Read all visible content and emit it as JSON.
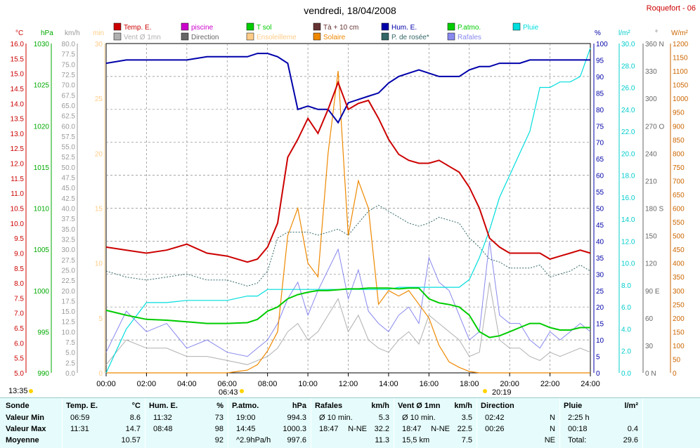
{
  "header": {
    "title": "vendredi, 18/04/2008",
    "station": "Roquefort - 06"
  },
  "legend": [
    {
      "label": "Temp. E.",
      "color": "#cc0000"
    },
    {
      "label": "piscine",
      "color": "#cc00cc"
    },
    {
      "label": "T sol",
      "color": "#00cc00"
    },
    {
      "label": "Tà + 10 cm",
      "color": "#663333"
    },
    {
      "label": "Hum. E.",
      "color": "#0000aa"
    },
    {
      "label": "P.atmo.",
      "color": "#00cc00"
    },
    {
      "label": "Pluie",
      "color": "#00dddd"
    },
    {
      "label": "Vent Ø 1mn",
      "color": "#b0b0b0"
    },
    {
      "label": "Direction",
      "color": "#666666"
    },
    {
      "label": "Ensoleilleme",
      "color": "#ffcc88"
    },
    {
      "label": "Solaire",
      "color": "#ee8800"
    },
    {
      "label": "P. de rosée*",
      "color": "#336666"
    },
    {
      "label": "Rafales",
      "color": "#8888ee"
    }
  ],
  "axes": {
    "temp": {
      "unit": "°C",
      "color": "#cc0000",
      "ticks": [
        "16.0",
        "15.5",
        "15.0",
        "14.5",
        "14.0",
        "13.5",
        "13.0",
        "12.5",
        "12.0",
        "11.5",
        "11.0",
        "10.5",
        "10.0",
        "9.5",
        "9.0",
        "8.5",
        "8.0",
        "7.5",
        "7.0",
        "6.5",
        "6.0",
        "5.5",
        "5.0"
      ]
    },
    "press": {
      "unit": "hPa",
      "color": "#00aa00",
      "ticks": [
        "1030",
        "1025",
        "1020",
        "1015",
        "1010",
        "1005",
        "1000",
        "995",
        "990"
      ]
    },
    "wind": {
      "unit": "km/h",
      "color": "#999999",
      "ticks": [
        "80.0",
        "77.5",
        "75.0",
        "72.5",
        "70.0",
        "67.5",
        "65.0",
        "62.5",
        "60.0",
        "57.5",
        "55.0",
        "52.5",
        "50.0",
        "47.5",
        "45.0",
        "42.5",
        "40.0",
        "37.5",
        "35.0",
        "32.5",
        "30.0",
        "27.5",
        "25.0",
        "22.5",
        "20.0",
        "17.5",
        "15.0",
        "12.5",
        "10.0",
        "7.5",
        "5.0",
        "2.5",
        "0.0"
      ]
    },
    "min": {
      "unit": "min",
      "color": "#ffcc88",
      "ticks": [
        "30",
        "25",
        "20",
        "15",
        "10",
        "5",
        "0"
      ]
    },
    "hum": {
      "unit": "%",
      "color": "#0000aa",
      "ticks": [
        "100",
        "95",
        "90",
        "85",
        "80",
        "75",
        "70",
        "65",
        "60",
        "55",
        "50",
        "45",
        "40",
        "35",
        "30",
        "25",
        "20",
        "15",
        "10",
        "5",
        "0"
      ]
    },
    "rain": {
      "unit": "l/m²",
      "color": "#00cccc",
      "ticks": [
        "30.0",
        "28.0",
        "26.0",
        "24.0",
        "22.0",
        "20.0",
        "18.0",
        "16.0",
        "14.0",
        "12.0",
        "10.0",
        "8.0",
        "6.0",
        "4.0",
        "2.0",
        "0.0"
      ]
    },
    "dir": {
      "unit": "°",
      "color": "#666666",
      "ticks": [
        "360 N",
        "330",
        "300",
        "270 O",
        "240",
        "210",
        "180 S",
        "150",
        "120",
        "90 E",
        "60",
        "30",
        "0 N"
      ]
    },
    "solar": {
      "unit": "W/m²",
      "color": "#cc6600",
      "ticks": [
        "1200",
        "1150",
        "1100",
        "1050",
        "1000",
        "950",
        "900",
        "850",
        "800",
        "750",
        "700",
        "650",
        "600",
        "550",
        "500",
        "450",
        "400",
        "350",
        "300",
        "250",
        "200",
        "150",
        "100",
        "50",
        "0"
      ]
    },
    "time": {
      "ticks": [
        "00:00",
        "02:00",
        "04:00",
        "06:00",
        "08:00",
        "10:00",
        "12:00",
        "14:00",
        "16:00",
        "18:00",
        "20:00",
        "22:00",
        "24:00"
      ]
    }
  },
  "sun": {
    "sunrise": "06:43",
    "sunset": "20:19",
    "daylength": "13:35"
  },
  "chart_data": {
    "type": "line",
    "x_label": "heure",
    "x": [
      0,
      1,
      2,
      3,
      4,
      5,
      6,
      7,
      7.5,
      8,
      8.5,
      9,
      9.5,
      10,
      10.5,
      11,
      11.5,
      12,
      12.5,
      13,
      13.5,
      14,
      14.5,
      15,
      15.5,
      16,
      16.5,
      17,
      17.5,
      18,
      18.5,
      19,
      19.5,
      20,
      20.5,
      21,
      21.5,
      22,
      22.5,
      23,
      23.5,
      24
    ],
    "series": [
      {
        "name": "Temp. E.",
        "axis": "temp",
        "values": [
          9.2,
          9.1,
          9.0,
          9.1,
          9.3,
          9.0,
          8.9,
          8.7,
          8.8,
          9.2,
          10.0,
          12.2,
          12.8,
          13.5,
          13.0,
          13.8,
          14.7,
          13.8,
          14.0,
          14.1,
          13.5,
          12.8,
          12.3,
          12.1,
          12.0,
          12.0,
          12.1,
          11.9,
          11.7,
          11.2,
          10.5,
          9.5,
          9.2,
          9.0,
          9.0,
          9.0,
          9.0,
          8.8,
          8.9,
          9.0,
          9.1,
          9.0
        ]
      },
      {
        "name": "Hum. E.",
        "axis": "hum",
        "values": [
          94,
          95,
          95,
          95,
          95,
          96,
          96,
          96,
          97,
          97,
          96,
          94,
          80,
          81,
          80,
          80,
          76,
          82,
          83,
          84,
          85,
          88,
          90,
          91,
          92,
          91,
          90,
          90,
          90,
          92,
          93,
          93,
          94,
          94,
          94,
          95,
          95,
          95,
          95,
          95,
          95,
          95
        ]
      },
      {
        "name": "P.atmo.",
        "axis": "press",
        "values": [
          997.6,
          997.0,
          996.5,
          996.4,
          996.2,
          996.0,
          996.0,
          996.1,
          996.5,
          997.5,
          998.0,
          999.0,
          999.5,
          999.8,
          1000.0,
          1000.0,
          1000.1,
          1000.2,
          1000.2,
          1000.3,
          1000.3,
          1000.3,
          1000.2,
          1000.3,
          1000.3,
          999.0,
          998.5,
          998.3,
          998.0,
          997.0,
          995.0,
          994.3,
          994.5,
          995.0,
          995.5,
          996.0,
          996.0,
          995.5,
          995.2,
          995.2,
          995.5,
          995.5
        ]
      },
      {
        "name": "Pluie",
        "axis": "rain",
        "values": [
          0,
          4.0,
          6.4,
          6.4,
          6.6,
          6.6,
          6.6,
          7.0,
          7.0,
          7.6,
          7.6,
          7.6,
          7.6,
          7.6,
          7.6,
          7.6,
          7.6,
          7.6,
          7.6,
          7.6,
          7.6,
          7.6,
          7.8,
          7.8,
          7.8,
          7.8,
          7.8,
          7.8,
          7.8,
          8.5,
          10.5,
          13.0,
          16.0,
          18.0,
          20.0,
          22.0,
          26.0,
          26.0,
          26.5,
          26.5,
          27.0,
          29.6
        ]
      },
      {
        "name": "Solaire",
        "axis": "solar",
        "values": [
          0,
          0,
          0,
          0,
          0,
          0,
          0,
          10,
          30,
          80,
          150,
          500,
          600,
          400,
          350,
          800,
          1100,
          500,
          700,
          600,
          250,
          300,
          280,
          300,
          250,
          200,
          100,
          40,
          20,
          5,
          0,
          0,
          0,
          0,
          0,
          0,
          0,
          0,
          0,
          0,
          0,
          0
        ]
      },
      {
        "name": "Rafales",
        "axis": "wind",
        "values": [
          5,
          15,
          10,
          12,
          6,
          8,
          5,
          4,
          6,
          8,
          12,
          18,
          22,
          14,
          20,
          25,
          30,
          18,
          25,
          15,
          12,
          10,
          14,
          16,
          12,
          28,
          22,
          20,
          14,
          8,
          10,
          32,
          14,
          12,
          12,
          8,
          6,
          10,
          8,
          10,
          12,
          10
        ]
      },
      {
        "name": "Vent Ø 1mn",
        "axis": "wind",
        "values": [
          2,
          8,
          6,
          6,
          4,
          4,
          3,
          2,
          3,
          4,
          6,
          10,
          12,
          8,
          10,
          14,
          18,
          10,
          14,
          8,
          6,
          5,
          8,
          10,
          7,
          14,
          12,
          10,
          8,
          4,
          5,
          22,
          8,
          6,
          6,
          4,
          3,
          5,
          4,
          5,
          6,
          5
        ]
      },
      {
        "name": "P. de rosée*",
        "axis": "temp",
        "values": [
          8.4,
          8.2,
          8.1,
          8.2,
          8.3,
          8.1,
          8.1,
          7.9,
          8.0,
          8.4,
          9.5,
          9.7,
          9.7,
          9.7,
          9.6,
          9.7,
          9.8,
          9.6,
          10.0,
          10.4,
          10.6,
          10.4,
          10.2,
          10.0,
          9.9,
          10.0,
          10.2,
          10.1,
          10.0,
          9.5,
          9.2,
          8.8,
          8.7,
          8.5,
          8.5,
          8.5,
          8.6,
          8.2,
          8.3,
          8.4,
          8.6,
          8.4
        ]
      }
    ]
  },
  "stats": {
    "headers": {
      "sonde": "Sonde",
      "temp": "Temp. E.",
      "temp_u": "°C",
      "hum": "Hum. E.",
      "hum_u": "%",
      "patmo": "P.atmo.",
      "patmo_u": "hPa",
      "raf": "Rafales",
      "raf_u": "km/h",
      "vent": "Vent Ø 1mn",
      "vent_u": "km/h",
      "dir": "Direction",
      "pluie": "Pluie",
      "pluie_u": "l/m²"
    },
    "rows": [
      "Valeur Min",
      "Valeur Max",
      "Moyenne"
    ],
    "temp": [
      [
        "06:59",
        "8.6"
      ],
      [
        "11:31",
        "14.7"
      ],
      [
        "",
        "10.57"
      ]
    ],
    "hum": [
      [
        "11:32",
        "73"
      ],
      [
        "08:48",
        "98"
      ],
      [
        "",
        "92"
      ]
    ],
    "patmo": [
      [
        "19:00",
        "994.3"
      ],
      [
        "14:45",
        "1000.3"
      ],
      [
        "^2.9hPa/h",
        "997.6"
      ]
    ],
    "raf": [
      [
        "Ø 10 min.",
        "",
        "5.3"
      ],
      [
        "18:47",
        "N-NE",
        "32.2"
      ],
      [
        "",
        "",
        "11.3"
      ]
    ],
    "vent": [
      [
        "Ø 10 min.",
        "",
        "3.5"
      ],
      [
        "18:47",
        "N-NE",
        "22.5"
      ],
      [
        "15,5 km",
        "",
        "7.5"
      ]
    ],
    "dir": [
      [
        "02:42",
        "N"
      ],
      [
        "00:26",
        "N"
      ],
      [
        "",
        "NE"
      ]
    ],
    "pluie": [
      [
        "2:25 h",
        ""
      ],
      [
        "00:18",
        "0.4"
      ],
      [
        "Total:",
        "29.6"
      ]
    ]
  }
}
